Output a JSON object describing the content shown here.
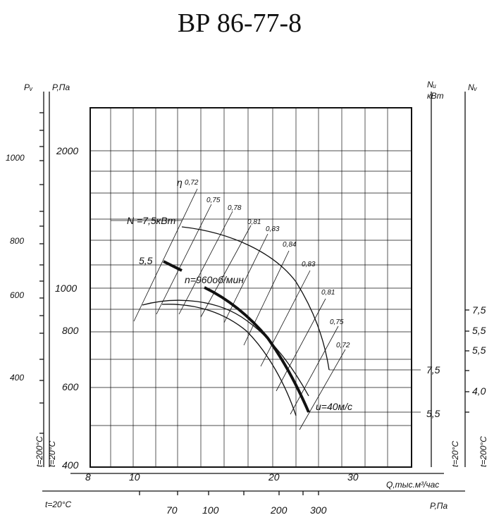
{
  "chart_data": {
    "type": "line",
    "title": "ВР 86-77-8",
    "axes": {
      "x_top_label": "Q,тыс.м³/час",
      "x_top_ticks": [
        "8",
        "10",
        "20",
        "30"
      ],
      "x_bottom_label": "P,Па",
      "x_bottom_prefix": "t=20°C",
      "x_bottom_ticks": [
        "70",
        "100",
        "200",
        "300"
      ],
      "y_outer_left_label": "Pᵥ",
      "y_outer_left_ticks": [
        "1000",
        "800",
        "600",
        "400"
      ],
      "y_outer_left_temp": "t=200°C",
      "y_inner_left_label": "P,Па",
      "y_inner_left_ticks": [
        "2000",
        "1000",
        "800",
        "600",
        "400"
      ],
      "y_inner_left_temp": "t=20°C",
      "y_inner_right_label": "Nᵤ",
      "y_inner_right_unit": "кВт",
      "y_inner_right_ticks": [
        "7,5",
        "5,5"
      ],
      "y_inner_right_temp": "t=20°C",
      "y_outer_right_label": "Nᵥ",
      "y_outer_right_ticks": [
        "7,5",
        "5,5",
        "5,5",
        "4,0"
      ],
      "y_outer_right_temp": "t=200°C"
    },
    "annotations": {
      "eta_prefix": "η",
      "eta_values": [
        "0,72",
        "0,75",
        "0,78",
        "0,81",
        "0,83",
        "0,84",
        "0,83",
        "0,81",
        "0,75",
        "0,72"
      ],
      "motor_power": "N =7,5кВт",
      "motor_power_2": "5,5",
      "speed": "n=960об/мин",
      "velocity": "u=40м/с"
    }
  }
}
